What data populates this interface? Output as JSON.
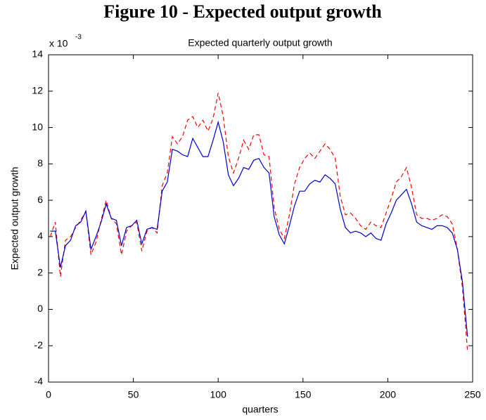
{
  "heading": "Figure 10 - Expected output growth",
  "chart_data": {
    "type": "line",
    "title": "Expected quarterly output growth",
    "xlabel": "quarters",
    "ylabel": "Expected output growth",
    "y_scale_label": {
      "base": "x 10",
      "exponent": "-3"
    },
    "x": [
      1,
      4,
      7,
      10,
      13,
      16,
      19,
      22,
      25,
      28,
      31,
      34,
      37,
      40,
      43,
      46,
      49,
      52,
      55,
      58,
      61,
      64,
      67,
      70,
      73,
      76,
      79,
      82,
      85,
      88,
      91,
      94,
      97,
      100,
      103,
      106,
      109,
      112,
      115,
      118,
      121,
      124,
      127,
      130,
      133,
      136,
      139,
      142,
      145,
      148,
      151,
      154,
      157,
      160,
      163,
      166,
      169,
      172,
      175,
      178,
      181,
      184,
      187,
      190,
      193,
      196,
      199,
      202,
      205,
      208,
      211,
      214,
      217,
      220,
      223,
      226,
      229,
      232,
      235,
      238,
      241,
      244,
      247
    ],
    "series": [
      {
        "color": "#ff0000",
        "linestyle": "dashed",
        "values": [
          4.0,
          4.8,
          1.8,
          3.8,
          4.0,
          4.5,
          4.9,
          5.4,
          3.0,
          3.7,
          4.9,
          6.0,
          5.0,
          4.7,
          3.0,
          4.3,
          4.6,
          4.8,
          3.2,
          4.3,
          4.5,
          4.2,
          6.8,
          7.5,
          9.5,
          9.1,
          9.5,
          10.4,
          10.6,
          10.0,
          10.4,
          9.8,
          10.5,
          11.9,
          10.6,
          8.4,
          7.5,
          8.3,
          9.3,
          8.8,
          9.6,
          9.6,
          8.5,
          8.4,
          5.6,
          4.4,
          3.9,
          5.2,
          6.9,
          7.8,
          8.3,
          8.6,
          8.3,
          8.7,
          9.1,
          8.8,
          8.3,
          6.2,
          5.2,
          5.3,
          5.0,
          4.6,
          4.4,
          4.8,
          4.6,
          4.5,
          5.3,
          6.1,
          7.0,
          7.3,
          7.8,
          6.7,
          5.2,
          5.0,
          5.0,
          4.9,
          5.0,
          5.2,
          5.1,
          4.7,
          3.3,
          1.2,
          -2.3
        ]
      },
      {
        "color": "#0000cc",
        "linestyle": "solid",
        "values": [
          4.3,
          4.3,
          2.3,
          3.5,
          3.8,
          4.6,
          4.8,
          5.4,
          3.3,
          4.0,
          4.8,
          5.8,
          5.0,
          4.9,
          3.5,
          4.5,
          4.6,
          4.9,
          3.6,
          4.4,
          4.5,
          4.4,
          6.5,
          7.0,
          8.8,
          8.7,
          8.5,
          8.4,
          9.4,
          8.9,
          8.4,
          8.4,
          9.3,
          10.3,
          9.2,
          7.4,
          6.8,
          7.2,
          7.8,
          7.7,
          8.2,
          8.3,
          7.8,
          7.5,
          5.1,
          4.1,
          3.6,
          4.6,
          5.7,
          6.5,
          6.5,
          6.9,
          7.1,
          7.0,
          7.4,
          7.2,
          6.9,
          5.5,
          4.5,
          4.2,
          4.3,
          4.2,
          4.0,
          4.2,
          3.9,
          3.8,
          4.7,
          5.3,
          6.0,
          6.3,
          6.6,
          5.8,
          4.8,
          4.6,
          4.5,
          4.4,
          4.6,
          4.6,
          4.5,
          4.2,
          3.3,
          1.5,
          -1.5
        ]
      }
    ],
    "xlim": [
      0,
      250
    ],
    "xticks": [
      0,
      50,
      100,
      150,
      200,
      250
    ],
    "ylim": [
      -4,
      14
    ],
    "yticks": [
      -4,
      -2,
      0,
      2,
      4,
      6,
      8,
      10,
      12,
      14
    ],
    "grid": false
  }
}
